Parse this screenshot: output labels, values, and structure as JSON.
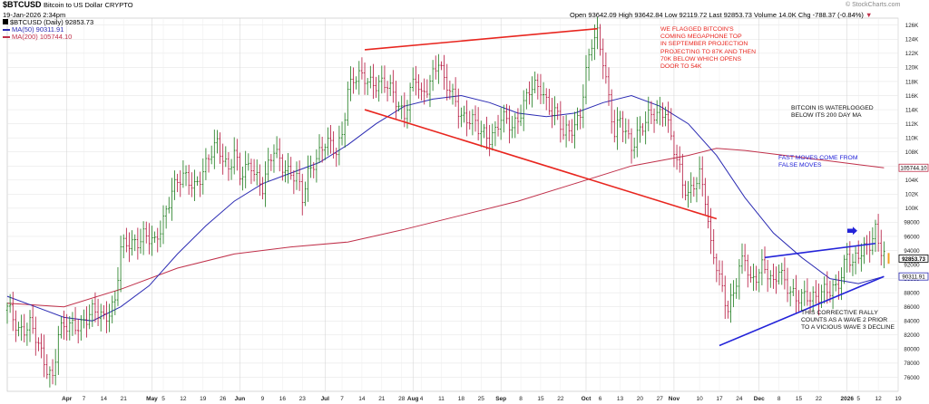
{
  "header": {
    "symbol": "$BTCUSD",
    "name": "Bitcoin to US Dollar",
    "market": "CRYPTO",
    "date": "19-Jan-2026 2:34pm",
    "open": "Open 93642.09",
    "high": "High 93642.84",
    "low": "Low 92119.72",
    "last": "Last 92853.73",
    "volume": "Volume 14.0K",
    "change": "Chg -788.37 (-0.84%)",
    "change_arrow": "▼",
    "watermark": "© StockCharts.com"
  },
  "legend": [
    {
      "label": "$BTCUSD (Daily) 92853.73",
      "color": "#000000"
    },
    {
      "label": "MA(50) 90311.91",
      "color": "#2b2bb3"
    },
    {
      "label": "MA(200) 105744.10",
      "color": "#c0304a"
    }
  ],
  "annotations": {
    "megaphone": "WE FLAGGED BITCOIN'S\nCOMING MEGAPHONE TOP\nIN SEPTEMBER PROJECTION\nPROJECTING TO 87K AND THEN\n70K BELOW WHICH OPENS\nDOOR TO 54K",
    "waterlogged": "BITCOIN IS WATERLOGGED\nBELOW ITS 200 DAY MA",
    "fast_moves": "FAST MOVES COME FROM\nFALSE MOVES",
    "corrective": "THIS CORRECTIVE RALLY\nCOUNTS AS A WAVE 2 PRIOR\nTO A VICIOUS WAVE 3 DECLINE"
  },
  "colors": {
    "up": "#1a7a1a",
    "down": "#b3123a",
    "ma50": "#2b2bb3",
    "ma200": "#c0304a",
    "trend_red": "#e8261f",
    "trend_blue": "#2323d9",
    "last_marker": "#f0a020",
    "grid": "#e2e2e2"
  },
  "chart_data": {
    "type": "candlestick",
    "ylim": [
      74000,
      127000
    ],
    "y_ticks": [
      76000,
      78000,
      80000,
      82000,
      84000,
      86000,
      88000,
      90000,
      92000,
      94000,
      96000,
      98000,
      100000,
      102000,
      104000,
      106000,
      108000,
      110000,
      112000,
      114000,
      116000,
      118000,
      120000,
      122000,
      124000,
      126000
    ],
    "y_tick_labels": [
      "76000",
      "78000",
      "80000",
      "82000",
      "84000",
      "86000",
      "88000",
      "90000",
      "92000",
      "94000",
      "96000",
      "98000",
      "100K",
      "102K",
      "104K",
      "106K",
      "108K",
      "110K",
      "112K",
      "114K",
      "116K",
      "118K",
      "120K",
      "122K",
      "124K",
      "126K"
    ],
    "x_ticks": [
      {
        "day": 21,
        "label": "Apr",
        "bold": true
      },
      {
        "day": 27,
        "label": "7"
      },
      {
        "day": 34,
        "label": "14"
      },
      {
        "day": 41,
        "label": "21"
      },
      {
        "day": 51,
        "label": "May",
        "bold": true
      },
      {
        "day": 55,
        "label": "5"
      },
      {
        "day": 62,
        "label": "12"
      },
      {
        "day": 69,
        "label": "19"
      },
      {
        "day": 76,
        "label": "26"
      },
      {
        "day": 82,
        "label": "Jun",
        "bold": true
      },
      {
        "day": 90,
        "label": "9"
      },
      {
        "day": 97,
        "label": "16"
      },
      {
        "day": 104,
        "label": "23"
      },
      {
        "day": 112,
        "label": "Jul",
        "bold": true
      },
      {
        "day": 118,
        "label": "7"
      },
      {
        "day": 125,
        "label": "14"
      },
      {
        "day": 132,
        "label": "21"
      },
      {
        "day": 139,
        "label": "28"
      },
      {
        "day": 143,
        "label": "Aug",
        "bold": true
      },
      {
        "day": 146,
        "label": "4"
      },
      {
        "day": 153,
        "label": "11"
      },
      {
        "day": 160,
        "label": "18"
      },
      {
        "day": 167,
        "label": "25"
      },
      {
        "day": 174,
        "label": "Sep",
        "bold": true
      },
      {
        "day": 181,
        "label": "8"
      },
      {
        "day": 188,
        "label": "15"
      },
      {
        "day": 195,
        "label": "22"
      },
      {
        "day": 204,
        "label": "Oct",
        "bold": true
      },
      {
        "day": 209,
        "label": "6"
      },
      {
        "day": 216,
        "label": "13"
      },
      {
        "day": 223,
        "label": "20"
      },
      {
        "day": 230,
        "label": "27"
      },
      {
        "day": 235,
        "label": "Nov",
        "bold": true
      },
      {
        "day": 244,
        "label": "10"
      },
      {
        "day": 251,
        "label": "17"
      },
      {
        "day": 258,
        "label": "24"
      },
      {
        "day": 265,
        "label": "Dec",
        "bold": true
      },
      {
        "day": 272,
        "label": "8"
      },
      {
        "day": 279,
        "label": "15"
      },
      {
        "day": 286,
        "label": "22"
      },
      {
        "day": 296,
        "label": "2026",
        "bold": true
      },
      {
        "day": 300,
        "label": "5"
      },
      {
        "day": 307,
        "label": "12"
      },
      {
        "day": 314,
        "label": "19"
      }
    ],
    "closes": [
      [
        0,
        85500
      ],
      [
        4,
        83000
      ],
      [
        8,
        83500
      ],
      [
        12,
        79000
      ],
      [
        14,
        77500
      ],
      [
        16,
        76300
      ],
      [
        18,
        82300
      ],
      [
        22,
        83000
      ],
      [
        26,
        84000
      ],
      [
        30,
        85000
      ],
      [
        34,
        84500
      ],
      [
        38,
        87000
      ],
      [
        40,
        94000
      ],
      [
        44,
        95000
      ],
      [
        48,
        96500
      ],
      [
        52,
        94500
      ],
      [
        54,
        97000
      ],
      [
        58,
        103000
      ],
      [
        62,
        104000
      ],
      [
        66,
        103500
      ],
      [
        70,
        106000
      ],
      [
        74,
        109000
      ],
      [
        78,
        106000
      ],
      [
        80,
        108000
      ],
      [
        82,
        104000
      ],
      [
        86,
        106500
      ],
      [
        90,
        103000
      ],
      [
        94,
        108000
      ],
      [
        98,
        106000
      ],
      [
        102,
        104000
      ],
      [
        104,
        101000
      ],
      [
        106,
        105000
      ],
      [
        108,
        107000
      ],
      [
        112,
        109000
      ],
      [
        116,
        108000
      ],
      [
        118,
        111000
      ],
      [
        120,
        117000
      ],
      [
        122,
        118000
      ],
      [
        126,
        118500
      ],
      [
        130,
        118000
      ],
      [
        134,
        117000
      ],
      [
        138,
        115000
      ],
      [
        140,
        113500
      ],
      [
        142,
        116500
      ],
      [
        144,
        118000
      ],
      [
        146,
        115500
      ],
      [
        150,
        119500
      ],
      [
        152,
        121000
      ],
      [
        154,
        117500
      ],
      [
        158,
        115500
      ],
      [
        160,
        113500
      ],
      [
        164,
        112000
      ],
      [
        166,
        111000
      ],
      [
        170,
        110500
      ],
      [
        172,
        111000
      ],
      [
        174,
        112500
      ],
      [
        178,
        111500
      ],
      [
        182,
        115000
      ],
      [
        184,
        116500
      ],
      [
        188,
        117000
      ],
      [
        190,
        115500
      ],
      [
        194,
        113000
      ],
      [
        196,
        110000
      ],
      [
        200,
        112000
      ],
      [
        202,
        114000
      ],
      [
        204,
        119000
      ],
      [
        206,
        123000
      ],
      [
        208,
        124500
      ],
      [
        210,
        121500
      ],
      [
        212,
        116000
      ],
      [
        214,
        110500
      ],
      [
        216,
        112000
      ],
      [
        220,
        109000
      ],
      [
        222,
        111000
      ],
      [
        226,
        112500
      ],
      [
        230,
        113500
      ],
      [
        232,
        114500
      ],
      [
        234,
        110000
      ],
      [
        238,
        103000
      ],
      [
        240,
        102000
      ],
      [
        242,
        104000
      ],
      [
        244,
        105000
      ],
      [
        246,
        101000
      ],
      [
        248,
        94000
      ],
      [
        250,
        92000
      ],
      [
        252,
        89000
      ],
      [
        254,
        86000
      ],
      [
        256,
        87500
      ],
      [
        258,
        91000
      ],
      [
        260,
        93000
      ],
      [
        262,
        90000
      ],
      [
        266,
        91500
      ],
      [
        270,
        89000
      ],
      [
        272,
        92000
      ],
      [
        276,
        88000
      ],
      [
        278,
        86500
      ],
      [
        282,
        88000
      ],
      [
        286,
        87500
      ],
      [
        290,
        88000
      ],
      [
        292,
        89000
      ],
      [
        294,
        91000
      ],
      [
        296,
        93500
      ],
      [
        298,
        91500
      ],
      [
        300,
        93000
      ],
      [
        302,
        94500
      ],
      [
        304,
        95500
      ],
      [
        306,
        97000
      ],
      [
        307,
        95000
      ],
      [
        308,
        93642
      ],
      [
        309,
        92853
      ]
    ],
    "ma50": [
      [
        0,
        87500
      ],
      [
        10,
        86000
      ],
      [
        20,
        84500
      ],
      [
        30,
        84000
      ],
      [
        40,
        86000
      ],
      [
        50,
        89000
      ],
      [
        60,
        93500
      ],
      [
        70,
        97500
      ],
      [
        80,
        101000
      ],
      [
        90,
        103500
      ],
      [
        100,
        105000
      ],
      [
        110,
        106500
      ],
      [
        120,
        109000
      ],
      [
        130,
        112000
      ],
      [
        140,
        114500
      ],
      [
        150,
        115500
      ],
      [
        160,
        116000
      ],
      [
        170,
        115000
      ],
      [
        180,
        113500
      ],
      [
        190,
        113000
      ],
      [
        200,
        113500
      ],
      [
        210,
        115000
      ],
      [
        220,
        116000
      ],
      [
        230,
        114500
      ],
      [
        240,
        112000
      ],
      [
        250,
        107500
      ],
      [
        260,
        101500
      ],
      [
        270,
        96500
      ],
      [
        280,
        93000
      ],
      [
        290,
        90000
      ],
      [
        300,
        89300
      ],
      [
        309,
        90312
      ]
    ],
    "ma200": [
      [
        0,
        86500
      ],
      [
        20,
        86000
      ],
      [
        40,
        88500
      ],
      [
        60,
        91500
      ],
      [
        80,
        93500
      ],
      [
        100,
        94500
      ],
      [
        120,
        95200
      ],
      [
        140,
        97000
      ],
      [
        160,
        99000
      ],
      [
        180,
        101000
      ],
      [
        200,
        103500
      ],
      [
        220,
        106000
      ],
      [
        240,
        107500
      ],
      [
        250,
        108500
      ],
      [
        260,
        108200
      ],
      [
        270,
        107700
      ],
      [
        280,
        107200
      ],
      [
        290,
        106700
      ],
      [
        300,
        106200
      ],
      [
        309,
        105744
      ]
    ],
    "megaphone_upper": [
      [
        126,
        122500
      ],
      [
        208,
        125500
      ]
    ],
    "megaphone_lower": [
      [
        126,
        114000
      ],
      [
        250,
        98500
      ]
    ],
    "triangle_upper": [
      [
        267,
        93000
      ],
      [
        306,
        95000
      ]
    ],
    "triangle_lower": [
      [
        251,
        80500
      ],
      [
        309,
        90300
      ]
    ],
    "last_value": 92853.73,
    "ma50_value": 90311.91,
    "ma200_value": 105744.1,
    "price_labels": {
      "last": "92853.73",
      "ma50": "90311.91",
      "ma200": "105744.10"
    }
  }
}
